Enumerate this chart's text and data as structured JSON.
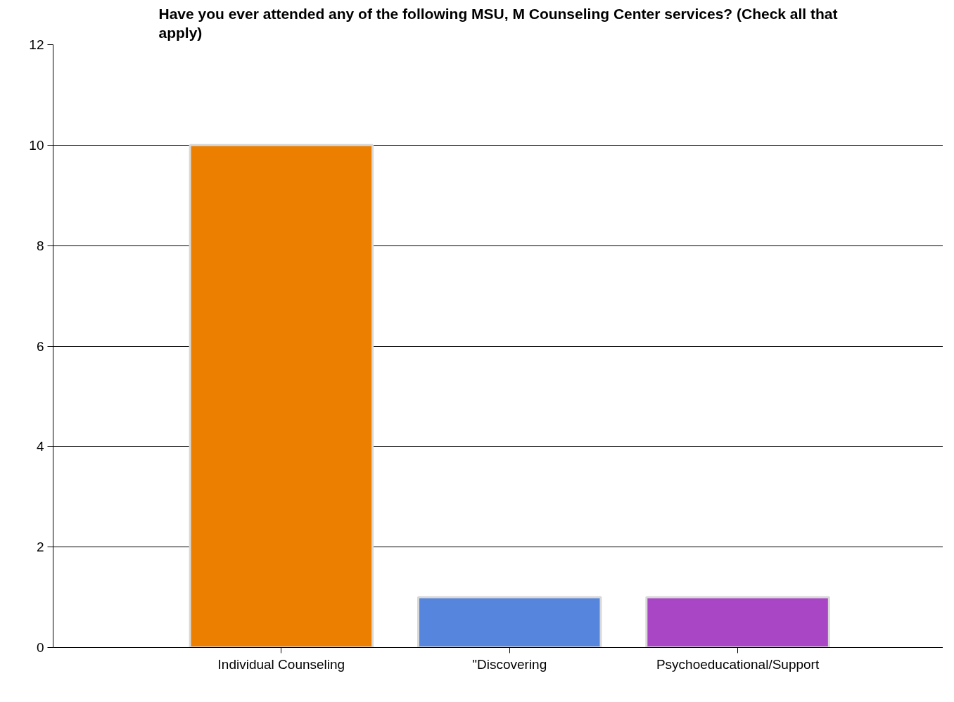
{
  "chart_data": {
    "type": "bar",
    "title": "Have you ever attended any of the following MSU, M Counseling Center services? (Check all that apply)",
    "categories": [
      "Individual Counseling",
      "\"Discovering",
      "Psychoeducational/Support"
    ],
    "values": [
      10,
      1,
      1
    ],
    "colors": [
      "#ec7f00",
      "#5585dc",
      "#a846c6"
    ],
    "ylim": [
      0,
      12
    ],
    "yticks": [
      0,
      2,
      4,
      6,
      8,
      10,
      12
    ],
    "grid": "y"
  }
}
